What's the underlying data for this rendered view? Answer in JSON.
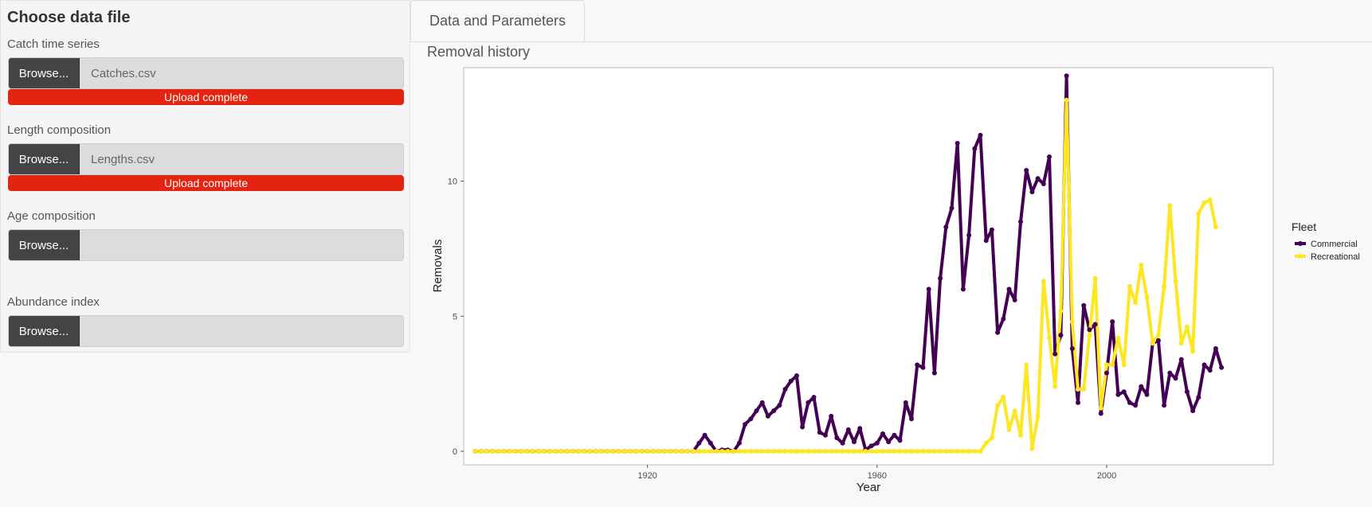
{
  "sidebar": {
    "title": "Choose data file",
    "inputs": [
      {
        "label": "Catch time series",
        "button": "Browse...",
        "filename": "Catches.csv",
        "status": "Upload complete"
      },
      {
        "label": "Length composition",
        "button": "Browse...",
        "filename": "Lengths.csv",
        "status": "Upload complete"
      },
      {
        "label": "Age composition",
        "button": "Browse...",
        "filename": "",
        "status": ""
      },
      {
        "label": "Abundance index",
        "button": "Browse...",
        "filename": "",
        "status": ""
      }
    ]
  },
  "tabs": [
    {
      "label": "Data and Parameters"
    }
  ],
  "plot": {
    "title": "Removal history"
  },
  "chart_data": {
    "type": "line",
    "xlabel": "Year",
    "ylabel": "Removals",
    "xlim": [
      1888,
      2029
    ],
    "ylim": [
      -0.5,
      14.2
    ],
    "x_ticks": [
      1920,
      1960,
      2000
    ],
    "y_ticks": [
      0,
      5,
      10
    ],
    "grid": false,
    "legend_title": "Fleet",
    "legend_position": "right",
    "x_start": 1890,
    "x_end": 2020,
    "series": [
      {
        "name": "Commercial",
        "color": "#440154",
        "values": [
          0,
          0,
          0,
          0,
          0,
          0,
          0,
          0,
          0,
          0,
          0,
          0,
          0,
          0,
          0,
          0,
          0,
          0,
          0,
          0,
          0,
          0,
          0,
          0,
          0,
          0,
          0,
          0,
          0,
          0,
          0,
          0,
          0,
          0,
          0,
          0,
          0,
          0,
          0,
          0.3,
          0.6,
          0.3,
          0,
          0.05,
          0.05,
          0,
          0.3,
          1,
          1.2,
          1.5,
          1.8,
          1.3,
          1.5,
          1.7,
          2.3,
          2.6,
          2.8,
          0.9,
          1.8,
          2,
          0.7,
          0.6,
          1.3,
          0.5,
          0.3,
          0.8,
          0.35,
          0.85,
          0.05,
          0.2,
          0.3,
          0.65,
          0.35,
          0.6,
          0.4,
          1.8,
          1.2,
          3.2,
          3.1,
          6,
          2.9,
          6.4,
          8.3,
          9,
          11.4,
          6,
          8,
          11.2,
          11.7,
          7.8,
          8.2,
          4.4,
          4.9,
          6,
          5.6,
          8.5,
          10.4,
          9.6,
          10.1,
          9.9,
          10.9,
          3.6,
          4.3,
          13.9,
          3.8,
          1.8,
          5.4,
          4.5,
          4.7,
          1.4,
          2.9,
          4.8,
          2.1,
          2.2,
          1.8,
          1.7,
          2.4,
          2.1,
          4,
          4.1,
          1.7,
          2.9,
          2.7,
          3.4,
          2.2,
          1.5,
          2,
          3.2,
          3,
          3.8,
          3.1
        ]
      },
      {
        "name": "Recreational",
        "color": "#FDE725",
        "values": [
          0,
          0,
          0,
          0,
          0,
          0,
          0,
          0,
          0,
          0,
          0,
          0,
          0,
          0,
          0,
          0,
          0,
          0,
          0,
          0,
          0,
          0,
          0,
          0,
          0,
          0,
          0,
          0,
          0,
          0,
          0,
          0,
          0,
          0,
          0,
          0,
          0,
          0,
          0,
          0,
          0,
          0,
          0,
          0,
          0,
          0,
          0,
          0,
          0,
          0,
          0,
          0,
          0,
          0,
          0,
          0,
          0,
          0,
          0,
          0,
          0,
          0,
          0,
          0,
          0,
          0,
          0,
          0,
          0,
          0,
          0,
          0,
          0,
          0,
          0,
          0,
          0,
          0,
          0,
          0,
          0,
          0,
          0,
          0,
          0,
          0,
          0,
          0,
          0,
          0.3,
          0.5,
          1.7,
          2,
          0.8,
          1.5,
          0.6,
          3.2,
          0.1,
          1.3,
          6.3,
          4.2,
          2.4,
          5.2,
          13,
          4.8,
          2.3,
          2.3,
          4.3,
          6.4,
          1.6,
          3.2,
          3.2,
          4.2,
          3.2,
          6.1,
          5.5,
          6.9,
          5.7,
          4,
          4.3,
          6.1,
          9.1,
          6.3,
          4,
          4.6,
          3.7,
          8.8,
          9.2,
          9.3,
          8.3
        ]
      }
    ]
  }
}
